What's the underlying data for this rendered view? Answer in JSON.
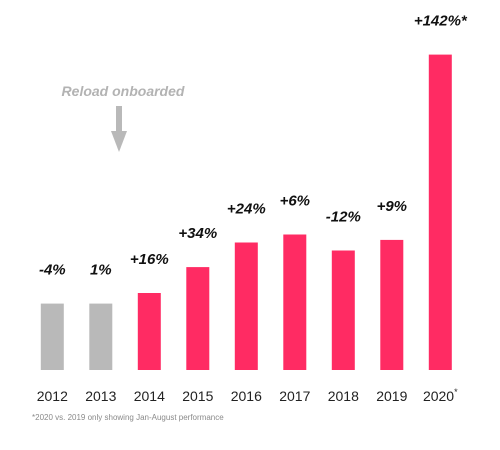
{
  "chart_data": {
    "type": "bar",
    "categories": [
      "2012",
      "2013",
      "2014",
      "2015",
      "2016",
      "2017",
      "2018",
      "2019",
      "2020"
    ],
    "category_suffix": {
      "2020": "*"
    },
    "values": [
      100,
      100,
      116,
      155,
      192,
      204,
      180,
      196,
      475
    ],
    "data_labels": [
      "-4%",
      "1%",
      "+16%",
      "+34%",
      "+24%",
      "+6%",
      "-12%",
      "+9%",
      "+142%*"
    ],
    "value_axis_shown": false,
    "ylim": [
      0,
      500
    ],
    "grid": false,
    "legend": "none",
    "bar_colors": [
      "#b9b9b9",
      "#b9b9b9",
      "#ff2b63",
      "#ff2b63",
      "#ff2b63",
      "#ff2b63",
      "#ff2b63",
      "#ff2b63",
      "#ff2b63"
    ],
    "annotation": {
      "text": "Reload onboarded",
      "points_to": "between 2013 and 2014",
      "color": "#b3b3b3"
    },
    "footnote": "*2020 vs. 2019 only showing Jan-August performance"
  }
}
